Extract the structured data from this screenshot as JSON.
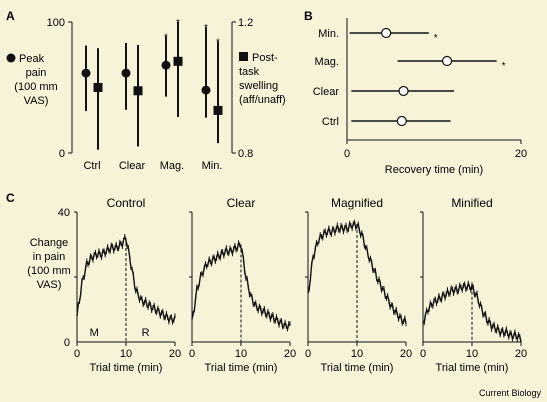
{
  "background": "#f7f3d9",
  "credit": "Current Biology",
  "chart_data": [
    {
      "panel": "A",
      "type": "scatter",
      "categories": [
        "Ctrl",
        "Clear",
        "Mag.",
        "Min."
      ],
      "left_axis": {
        "label_lines": [
          "Peak",
          "pain",
          "(100 mm",
          "VAS)"
        ],
        "ylim": [
          0,
          100
        ],
        "ticks": [
          "0",
          "100"
        ]
      },
      "right_axis": {
        "label_lines": [
          "Post-",
          "task",
          "swelling",
          "(aff/unaff)"
        ],
        "ylim": [
          0.8,
          1.2
        ],
        "ticks": [
          "0.8",
          "1.2"
        ]
      },
      "series": [
        {
          "name": "Peak pain",
          "marker": "circle",
          "axis": "left",
          "values": [
            61,
            61,
            67,
            48
          ],
          "err_low": [
            32,
            33,
            43,
            27
          ],
          "err_high": [
            82,
            84,
            89,
            96
          ],
          "significant": [
            false,
            false,
            true,
            true
          ]
        },
        {
          "name": "Post-task swelling",
          "marker": "square",
          "axis": "right",
          "values": [
            1.0,
            0.99,
            1.08,
            0.93
          ],
          "err_low": [
            0.81,
            0.82,
            0.91,
            0.83
          ],
          "err_high": [
            1.12,
            1.13,
            1.2,
            1.14
          ],
          "significant": [
            false,
            false,
            true,
            true
          ]
        }
      ],
      "significance_mark": "*"
    },
    {
      "panel": "B",
      "type": "scatter",
      "orientation": "horizontal",
      "categories": [
        "Min.",
        "Mag.",
        "Clear",
        "Ctrl"
      ],
      "values": [
        4.5,
        11.5,
        6.5,
        6.3
      ],
      "err_low": [
        0.3,
        5.8,
        0.5,
        0.5
      ],
      "err_high": [
        9.4,
        17.2,
        12.3,
        11.9
      ],
      "significant": [
        true,
        true,
        false,
        false
      ],
      "xlabel": "Recovery time (min)",
      "xlim": [
        0,
        20
      ],
      "xticks": [
        "0",
        "20"
      ]
    },
    {
      "panel": "C",
      "type": "line",
      "ylabel_lines": [
        "Change",
        "in pain",
        "(100 mm",
        "VAS)"
      ],
      "xlabel": "Trial time (min)",
      "xlim": [
        0,
        20
      ],
      "ylim": [
        0,
        40
      ],
      "xticks": [
        "0",
        "10",
        "20"
      ],
      "yticks": [
        "0",
        "40"
      ],
      "phase_labels": [
        "M",
        "R"
      ],
      "mirror_end_min": 10,
      "profile_x": [
        0,
        1,
        2,
        3,
        4,
        5,
        6,
        7,
        8,
        9,
        10,
        11,
        12,
        13,
        14,
        15,
        16,
        17,
        18,
        19,
        20
      ],
      "subplots": [
        {
          "title": "Control",
          "profile": [
            8,
            18,
            24,
            26,
            27,
            27,
            28,
            29,
            29,
            30,
            32,
            24,
            16,
            13,
            12,
            11,
            10,
            9,
            8,
            7,
            7
          ]
        },
        {
          "title": "Clear",
          "profile": [
            6,
            16,
            21,
            24,
            25,
            26,
            27,
            28,
            28,
            29,
            30,
            20,
            14,
            11,
            10,
            9,
            8,
            7,
            6,
            5,
            5
          ]
        },
        {
          "title": "Magnified",
          "profile": [
            14,
            26,
            31,
            33,
            34,
            34,
            35,
            35,
            35,
            36,
            36,
            33,
            28,
            24,
            20,
            17,
            14,
            11,
            9,
            7,
            6
          ]
        },
        {
          "title": "Minified",
          "profile": [
            6,
            10,
            12,
            13,
            14,
            15,
            16,
            16,
            17,
            17,
            17,
            14,
            10,
            7,
            5,
            4,
            3,
            3,
            2,
            2,
            1
          ]
        }
      ]
    }
  ]
}
